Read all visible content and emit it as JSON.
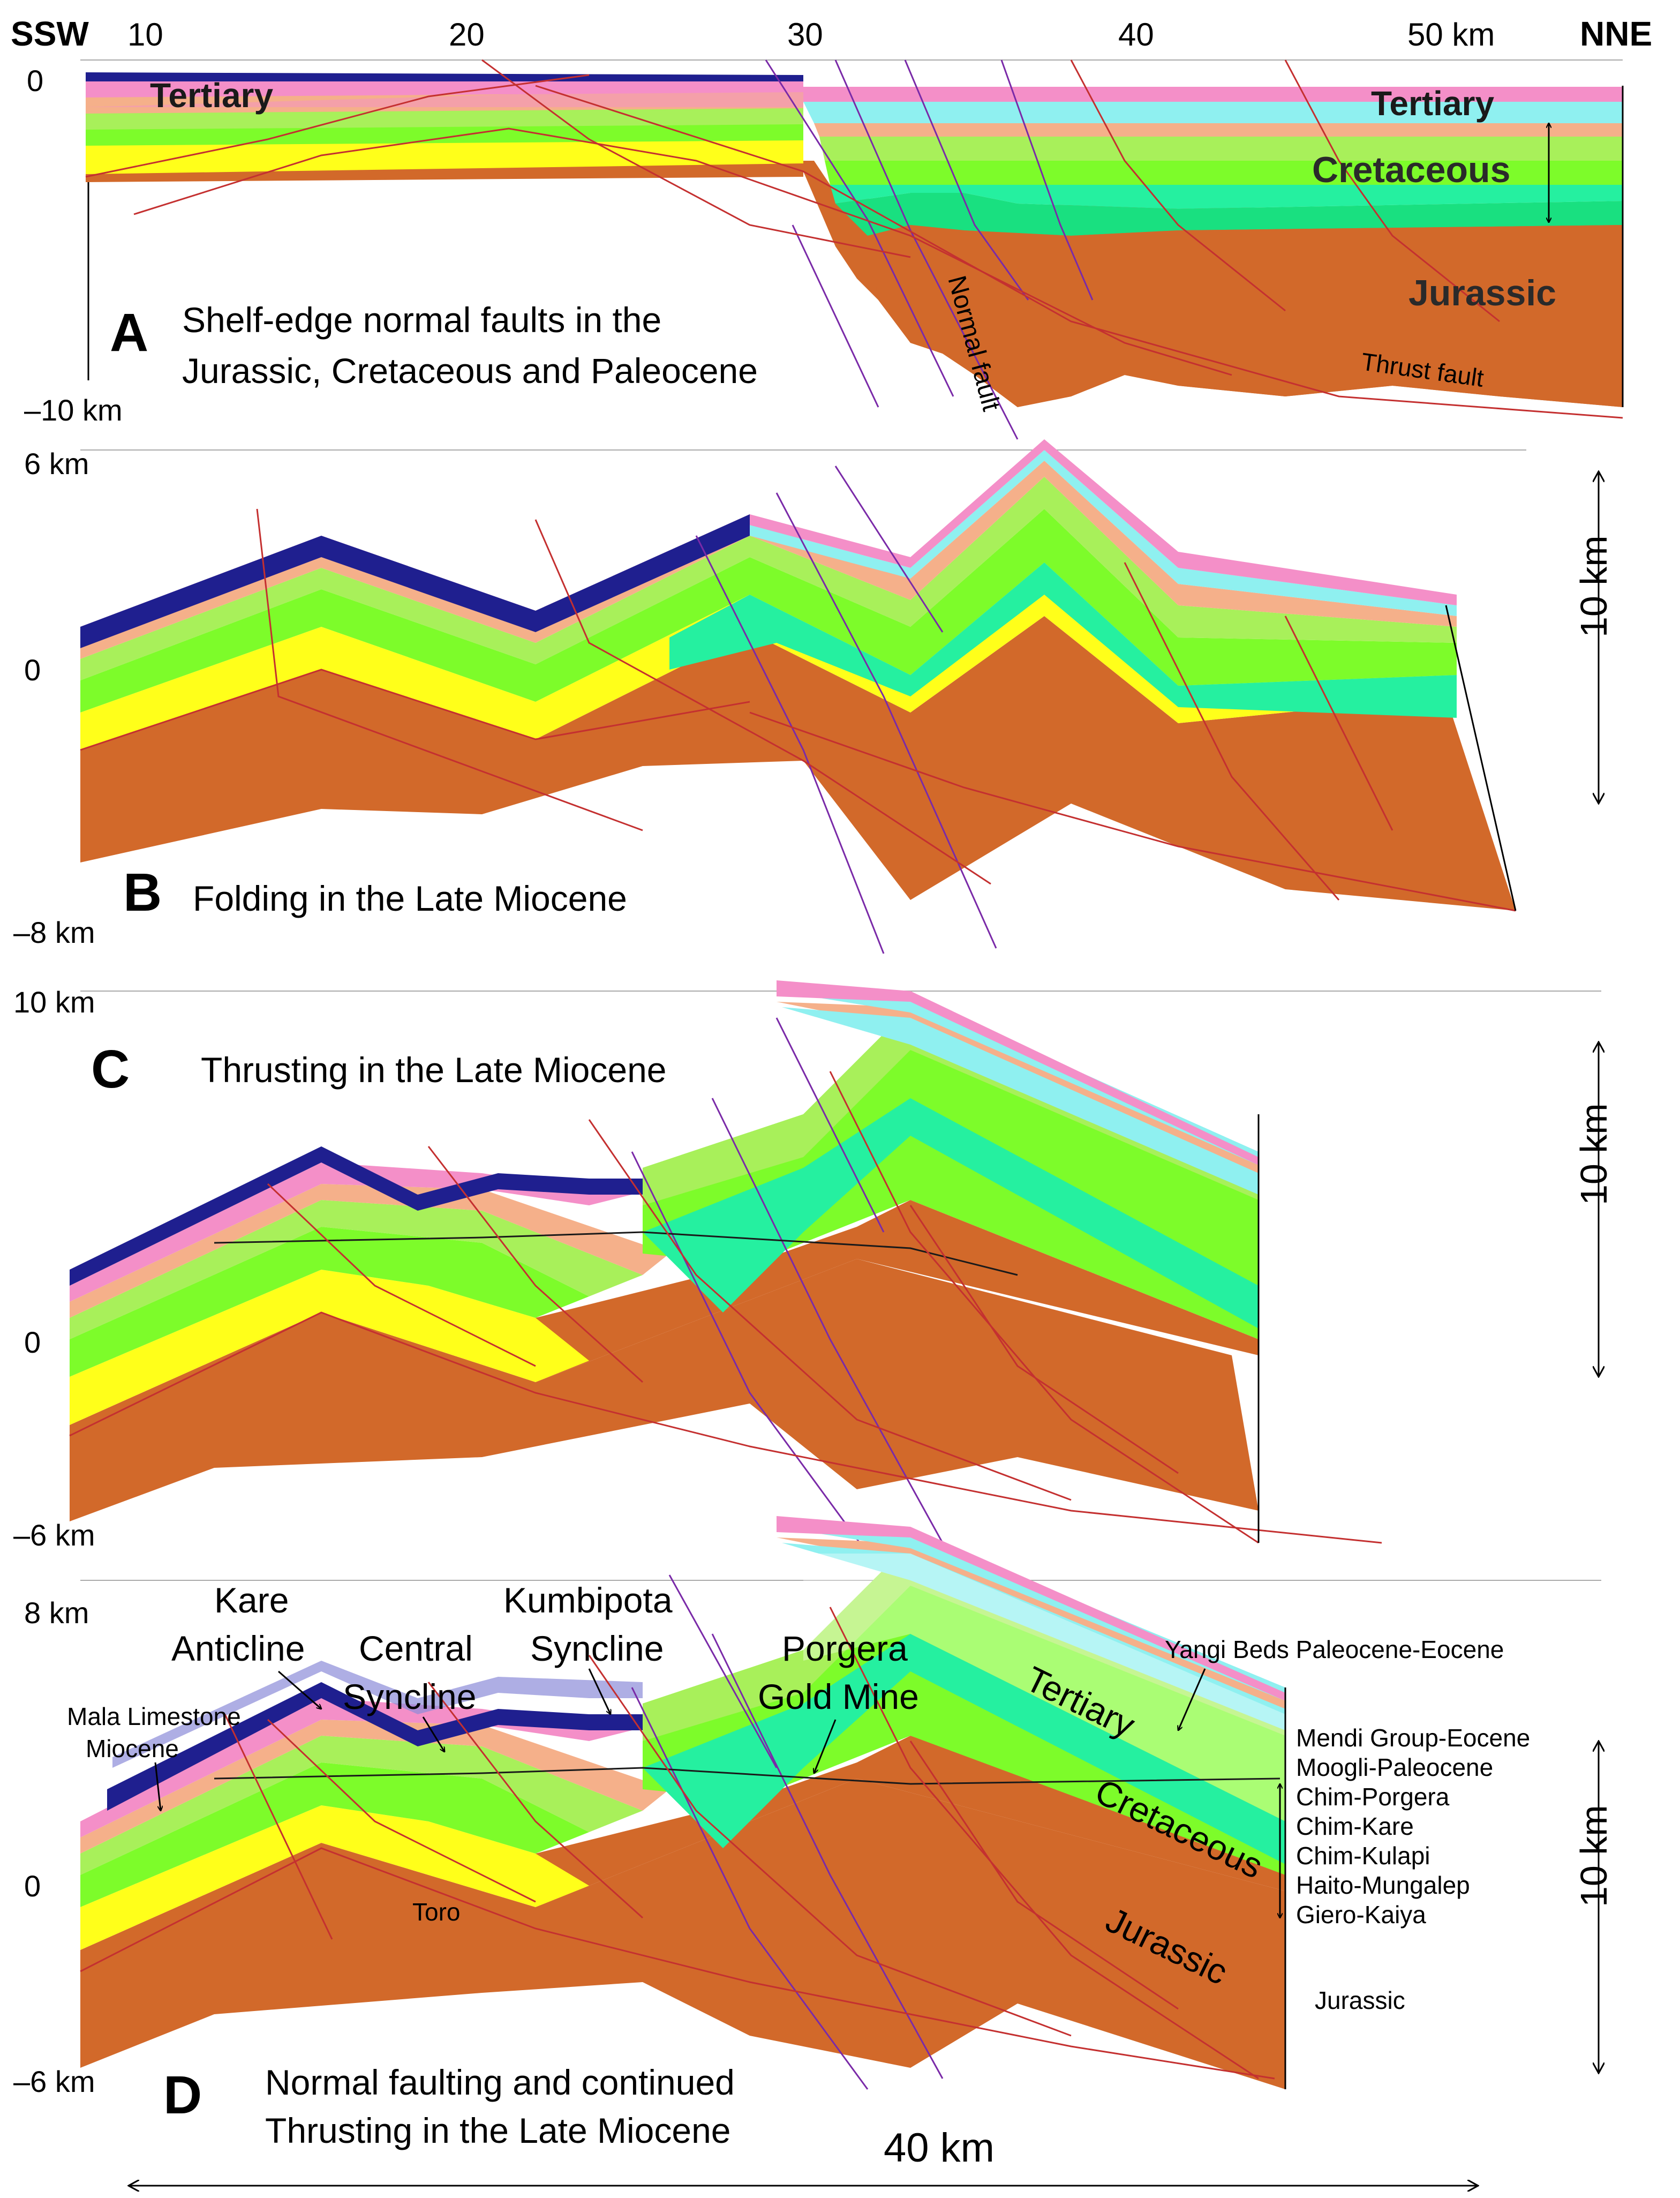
{
  "header": {
    "left": "SSW",
    "right": "NNE",
    "ticks": [
      "10",
      "20",
      "30",
      "40",
      "50 km"
    ]
  },
  "colors": {
    "tertiary_dark": "#1f1f8f",
    "tertiary_pink": "#f48fc8",
    "light_blue": "#8ff0f0",
    "salmon": "#f5b08a",
    "light_green": "#a8f05a",
    "bright_green": "#7dfc2a",
    "yellow": "#ffff1a",
    "dark_green": "#19e080",
    "mint": "#25f0a0",
    "jurassic": "#d2692a",
    "thrust": "#c43030",
    "normal": "#7a2aa8"
  },
  "panels": {
    "a": {
      "letter": "A",
      "caption1": "Shelf-edge normal faults in the",
      "caption2": "Jurassic, Cretaceous and Paleocene",
      "depth_top": "0",
      "depth_bottom": "–10 km",
      "tertiary_left": "Tertiary",
      "tertiary_right": "Tertiary",
      "cretaceous": "Cretaceous",
      "jurassic": "Jurassic",
      "normal_fault": "Normal fault",
      "thrust_fault": "Thrust fault"
    },
    "b": {
      "letter": "B",
      "caption": "Folding in the Late Miocene",
      "depth_top": "6 km",
      "depth_zero": "0",
      "depth_bottom": "–8 km",
      "scale": "10 km"
    },
    "c": {
      "letter": "C",
      "caption": "Thrusting in the Late Miocene",
      "depth_top": "10 km",
      "depth_zero": "0",
      "depth_bottom": "–6 km",
      "scale": "10 km"
    },
    "d": {
      "letter": "D",
      "caption1": "Normal faulting and continued",
      "caption2": "Thrusting in the Late Miocene",
      "depth_top": "8 km",
      "depth_zero": "0",
      "depth_bottom": "–6 km",
      "scale": "10 km",
      "bottom_scale": "40 km",
      "kare1": "Kare",
      "kare2": "Anticline",
      "central1": "Central",
      "central2": "Syncline",
      "kumb1": "Kumbipota",
      "kumb2": "Syncline",
      "porg1": "Porgera",
      "porg2": "Gold Mine",
      "mala1": "Mala Limestone",
      "mala2": "Miocene",
      "yangi": "Yangi Beds Paleocene-Eocene",
      "tertiary": "Tertiary",
      "cretaceous": "Cretaceous",
      "jurassic": "Jurassic",
      "toro": "Toro",
      "legend": [
        "Mendi Group-Eocene",
        "Moogli-Paleocene",
        "Chim-Porgera",
        "Chim-Kare",
        "Chim-Kulapi",
        "Haito-Mungalep",
        "Giero-Kaiya"
      ],
      "legend_jurassic": "Jurassic"
    }
  }
}
